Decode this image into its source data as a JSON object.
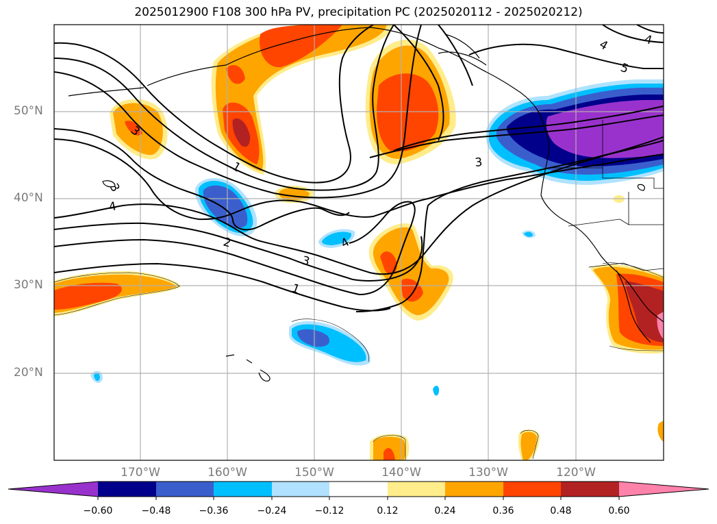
{
  "title": "2025012900 F108 300 hPa PV, precipitation PC (2025020112 - 2025020212)",
  "lat_labels": [
    "50°N",
    "40°N",
    "30°N",
    "20°N"
  ],
  "lon_labels": [
    "170°W",
    "160°W",
    "150°W",
    "140°W",
    "130°W",
    "120°W"
  ],
  "contour_labels": [
    "4",
    "3",
    "4",
    "5",
    "3",
    "1",
    "4",
    "2",
    "3",
    "1",
    "3",
    "4"
  ],
  "colorbar": {
    "ticks": [
      "−0.60",
      "−0.48",
      "−0.36",
      "−0.24",
      "−0.12",
      "0.12",
      "0.24",
      "0.36",
      "0.48",
      "0.60"
    ],
    "colors": [
      "#9932cc",
      "#00008b",
      "#3a5fcd",
      "#00bfff",
      "#b0e2ff",
      "#ffffff",
      "#ffec8b",
      "#ffa500",
      "#ff4500",
      "#b22222",
      "#ff82ab"
    ]
  },
  "colors": {
    "purple": "#9932cc",
    "navy": "#00008b",
    "royal": "#3a5fcd",
    "cyan": "#00bfff",
    "lightblue": "#b0e2ff",
    "lightyellow": "#ffec8b",
    "orange": "#ffa500",
    "orangered": "#ff4500",
    "firebrick": "#b22222",
    "pink": "#ff82ab",
    "grid": "#b0b0b0",
    "label_grey": "#7a7a7a"
  }
}
